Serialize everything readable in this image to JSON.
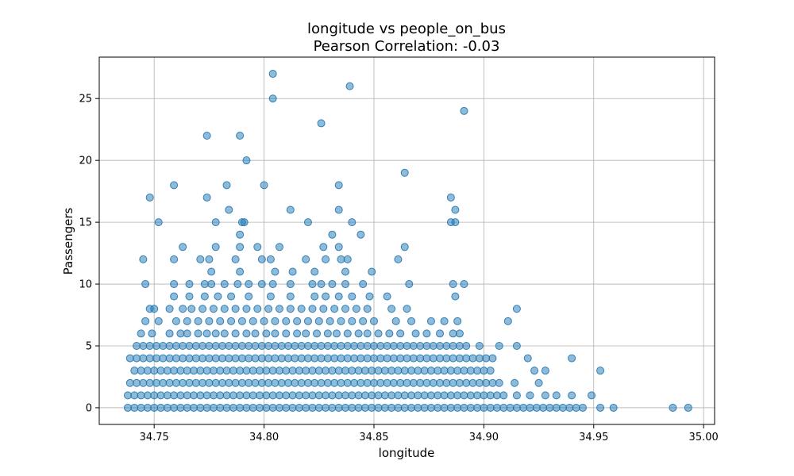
{
  "chart_data": {
    "type": "scatter",
    "title": "longitude vs people_on_bus",
    "subtitle": "Pearson Correlation: -0.03",
    "xlabel": "longitude",
    "ylabel": "Passengers",
    "xlim": [
      34.725,
      35.005
    ],
    "ylim": [
      -1.35,
      28.35
    ],
    "xticks": [
      34.75,
      34.8,
      34.85,
      34.9,
      34.95,
      35.0
    ],
    "xtick_labels": [
      "34.75",
      "34.80",
      "34.85",
      "34.90",
      "34.95",
      "35.00"
    ],
    "yticks": [
      0,
      5,
      10,
      15,
      20,
      25
    ],
    "ytick_labels": [
      "0",
      "5",
      "10",
      "15",
      "20",
      "25"
    ],
    "grid": true,
    "marker_color": "#1f77b4",
    "marker_alpha": 0.5,
    "series": [
      {
        "x": [
          34.738,
          34.741,
          34.744,
          34.747,
          34.75,
          34.753,
          34.756,
          34.759,
          34.762,
          34.765,
          34.768,
          34.771,
          34.774,
          34.777,
          34.78,
          34.783,
          34.786,
          34.789,
          34.792,
          34.795,
          34.798,
          34.801,
          34.804,
          34.807,
          34.81,
          34.813,
          34.816,
          34.819,
          34.822,
          34.825,
          34.828,
          34.831,
          34.834,
          34.837,
          34.84,
          34.843,
          34.846,
          34.849,
          34.852,
          34.855,
          34.858,
          34.861,
          34.864,
          34.867,
          34.87,
          34.873,
          34.876,
          34.879,
          34.882,
          34.885,
          34.888,
          34.891,
          34.894,
          34.897,
          34.9,
          34.903,
          34.906,
          34.909,
          34.912,
          34.915,
          34.918,
          34.921,
          34.924,
          34.927,
          34.93,
          34.933,
          34.936,
          34.939,
          34.942,
          34.945,
          34.953,
          34.959,
          34.986,
          34.993,
          34.738,
          34.741,
          34.744,
          34.747,
          34.75,
          34.753,
          34.756,
          34.759,
          34.762,
          34.765,
          34.768,
          34.771,
          34.774,
          34.777,
          34.78,
          34.783,
          34.786,
          34.789,
          34.792,
          34.795,
          34.798,
          34.801,
          34.804,
          34.807,
          34.81,
          34.813,
          34.816,
          34.819,
          34.822,
          34.825,
          34.828,
          34.831,
          34.834,
          34.837,
          34.84,
          34.843,
          34.846,
          34.849,
          34.852,
          34.855,
          34.858,
          34.861,
          34.864,
          34.867,
          34.87,
          34.873,
          34.876,
          34.879,
          34.882,
          34.885,
          34.888,
          34.891,
          34.894,
          34.897,
          34.9,
          34.903,
          34.906,
          34.909,
          34.915,
          34.921,
          34.928,
          34.933,
          34.94,
          34.949,
          34.739,
          34.742,
          34.745,
          34.748,
          34.751,
          34.754,
          34.757,
          34.76,
          34.763,
          34.766,
          34.769,
          34.772,
          34.775,
          34.778,
          34.781,
          34.784,
          34.787,
          34.79,
          34.793,
          34.796,
          34.799,
          34.802,
          34.805,
          34.808,
          34.811,
          34.814,
          34.817,
          34.82,
          34.823,
          34.826,
          34.829,
          34.832,
          34.835,
          34.838,
          34.841,
          34.844,
          34.847,
          34.85,
          34.853,
          34.856,
          34.859,
          34.862,
          34.865,
          34.868,
          34.871,
          34.874,
          34.877,
          34.88,
          34.883,
          34.886,
          34.889,
          34.892,
          34.895,
          34.898,
          34.901,
          34.904,
          34.907,
          34.914,
          34.925,
          34.741,
          34.744,
          34.747,
          34.75,
          34.753,
          34.756,
          34.759,
          34.762,
          34.765,
          34.768,
          34.771,
          34.774,
          34.777,
          34.78,
          34.783,
          34.786,
          34.789,
          34.792,
          34.795,
          34.798,
          34.801,
          34.804,
          34.807,
          34.81,
          34.813,
          34.816,
          34.819,
          34.822,
          34.825,
          34.828,
          34.831,
          34.834,
          34.837,
          34.84,
          34.843,
          34.846,
          34.849,
          34.852,
          34.855,
          34.858,
          34.861,
          34.864,
          34.867,
          34.87,
          34.873,
          34.876,
          34.879,
          34.882,
          34.885,
          34.888,
          34.891,
          34.894,
          34.897,
          34.9,
          34.903,
          34.923,
          34.928,
          34.953,
          34.739,
          34.742,
          34.745,
          34.748,
          34.751,
          34.754,
          34.757,
          34.76,
          34.763,
          34.766,
          34.769,
          34.772,
          34.775,
          34.778,
          34.781,
          34.784,
          34.787,
          34.79,
          34.793,
          34.796,
          34.799,
          34.802,
          34.805,
          34.808,
          34.811,
          34.814,
          34.817,
          34.82,
          34.823,
          34.826,
          34.829,
          34.832,
          34.835,
          34.838,
          34.841,
          34.844,
          34.847,
          34.85,
          34.853,
          34.856,
          34.859,
          34.862,
          34.865,
          34.868,
          34.871,
          34.874,
          34.877,
          34.88,
          34.883,
          34.886,
          34.889,
          34.892,
          34.895,
          34.898,
          34.901,
          34.904,
          34.92,
          34.94,
          34.742,
          34.745,
          34.748,
          34.751,
          34.754,
          34.757,
          34.76,
          34.763,
          34.766,
          34.769,
          34.772,
          34.775,
          34.778,
          34.781,
          34.784,
          34.787,
          34.79,
          34.793,
          34.796,
          34.799,
          34.802,
          34.805,
          34.808,
          34.811,
          34.814,
          34.817,
          34.82,
          34.823,
          34.826,
          34.829,
          34.832,
          34.835,
          34.838,
          34.841,
          34.844,
          34.847,
          34.85,
          34.853,
          34.856,
          34.859,
          34.862,
          34.865,
          34.868,
          34.871,
          34.874,
          34.877,
          34.88,
          34.883,
          34.886,
          34.889,
          34.892,
          34.898,
          34.907,
          34.915,
          34.744,
          34.749,
          34.757,
          34.762,
          34.765,
          34.77,
          34.774,
          34.778,
          34.782,
          34.787,
          34.792,
          34.796,
          34.801,
          34.805,
          34.81,
          34.815,
          34.819,
          34.824,
          34.829,
          34.833,
          34.838,
          34.843,
          34.847,
          34.852,
          34.857,
          34.862,
          34.869,
          34.874,
          34.88,
          34.886,
          34.889,
          34.746,
          34.752,
          34.76,
          34.765,
          34.77,
          34.775,
          34.78,
          34.785,
          34.79,
          34.795,
          34.8,
          34.805,
          34.81,
          34.815,
          34.82,
          34.825,
          34.83,
          34.835,
          34.84,
          34.845,
          34.85,
          34.86,
          34.867,
          34.876,
          34.882,
          34.888,
          34.911,
          34.748,
          34.75,
          34.757,
          34.763,
          34.767,
          34.772,
          34.777,
          34.782,
          34.787,
          34.792,
          34.797,
          34.802,
          34.807,
          34.812,
          34.817,
          34.822,
          34.827,
          34.832,
          34.837,
          34.842,
          34.847,
          34.858,
          34.865,
          34.915,
          34.759,
          34.766,
          34.773,
          34.779,
          34.785,
          34.793,
          34.803,
          34.812,
          34.823,
          34.828,
          34.834,
          34.84,
          34.848,
          34.856,
          34.887,
          34.746,
          34.759,
          34.766,
          34.773,
          34.776,
          34.782,
          34.788,
          34.793,
          34.799,
          34.804,
          34.812,
          34.822,
          34.826,
          34.831,
          34.837,
          34.845,
          34.866,
          34.886,
          34.891,
          34.776,
          34.789,
          34.805,
          34.813,
          34.823,
          34.837,
          34.849,
          34.745,
          34.759,
          34.771,
          34.775,
          34.787,
          34.799,
          34.803,
          34.819,
          34.828,
          34.835,
          34.838,
          34.861,
          34.763,
          34.778,
          34.789,
          34.797,
          34.807,
          34.827,
          34.834,
          34.864,
          34.789,
          34.831,
          34.844,
          34.79,
          34.82,
          34.885,
          34.752,
          34.778,
          34.791,
          34.84,
          34.887,
          34.784,
          34.812,
          34.834,
          34.887,
          34.748,
          34.774,
          34.885,
          34.759,
          34.783,
          34.8,
          34.834,
          34.864,
          34.792,
          34.774,
          34.789,
          34.826,
          34.891,
          34.804,
          34.839,
          34.804
        ],
        "y": [
          0,
          0,
          0,
          0,
          0,
          0,
          0,
          0,
          0,
          0,
          0,
          0,
          0,
          0,
          0,
          0,
          0,
          0,
          0,
          0,
          0,
          0,
          0,
          0,
          0,
          0,
          0,
          0,
          0,
          0,
          0,
          0,
          0,
          0,
          0,
          0,
          0,
          0,
          0,
          0,
          0,
          0,
          0,
          0,
          0,
          0,
          0,
          0,
          0,
          0,
          0,
          0,
          0,
          0,
          0,
          0,
          0,
          0,
          0,
          0,
          0,
          0,
          0,
          0,
          0,
          0,
          0,
          0,
          0,
          0,
          0,
          0,
          0,
          0,
          1,
          1,
          1,
          1,
          1,
          1,
          1,
          1,
          1,
          1,
          1,
          1,
          1,
          1,
          1,
          1,
          1,
          1,
          1,
          1,
          1,
          1,
          1,
          1,
          1,
          1,
          1,
          1,
          1,
          1,
          1,
          1,
          1,
          1,
          1,
          1,
          1,
          1,
          1,
          1,
          1,
          1,
          1,
          1,
          1,
          1,
          1,
          1,
          1,
          1,
          1,
          1,
          1,
          1,
          1,
          1,
          1,
          1,
          1,
          1,
          1,
          1,
          1,
          1,
          2,
          2,
          2,
          2,
          2,
          2,
          2,
          2,
          2,
          2,
          2,
          2,
          2,
          2,
          2,
          2,
          2,
          2,
          2,
          2,
          2,
          2,
          2,
          2,
          2,
          2,
          2,
          2,
          2,
          2,
          2,
          2,
          2,
          2,
          2,
          2,
          2,
          2,
          2,
          2,
          2,
          2,
          2,
          2,
          2,
          2,
          2,
          2,
          2,
          2,
          2,
          2,
          2,
          2,
          2,
          2,
          2,
          2,
          2,
          3,
          3,
          3,
          3,
          3,
          3,
          3,
          3,
          3,
          3,
          3,
          3,
          3,
          3,
          3,
          3,
          3,
          3,
          3,
          3,
          3,
          3,
          3,
          3,
          3,
          3,
          3,
          3,
          3,
          3,
          3,
          3,
          3,
          3,
          3,
          3,
          3,
          3,
          3,
          3,
          3,
          3,
          3,
          3,
          3,
          3,
          3,
          3,
          3,
          3,
          3,
          3,
          3,
          3,
          3,
          3,
          3,
          3,
          4,
          4,
          4,
          4,
          4,
          4,
          4,
          4,
          4,
          4,
          4,
          4,
          4,
          4,
          4,
          4,
          4,
          4,
          4,
          4,
          4,
          4,
          4,
          4,
          4,
          4,
          4,
          4,
          4,
          4,
          4,
          4,
          4,
          4,
          4,
          4,
          4,
          4,
          4,
          4,
          4,
          4,
          4,
          4,
          4,
          4,
          4,
          4,
          4,
          4,
          4,
          4,
          4,
          4,
          4,
          4,
          4,
          4,
          5,
          5,
          5,
          5,
          5,
          5,
          5,
          5,
          5,
          5,
          5,
          5,
          5,
          5,
          5,
          5,
          5,
          5,
          5,
          5,
          5,
          5,
          5,
          5,
          5,
          5,
          5,
          5,
          5,
          5,
          5,
          5,
          5,
          5,
          5,
          5,
          5,
          5,
          5,
          5,
          5,
          5,
          5,
          5,
          5,
          5,
          5,
          5,
          5,
          5,
          5,
          5,
          5,
          5,
          6,
          6,
          6,
          6,
          6,
          6,
          6,
          6,
          6,
          6,
          6,
          6,
          6,
          6,
          6,
          6,
          6,
          6,
          6,
          6,
          6,
          6,
          6,
          6,
          6,
          6,
          6,
          6,
          6,
          6,
          6,
          7,
          7,
          7,
          7,
          7,
          7,
          7,
          7,
          7,
          7,
          7,
          7,
          7,
          7,
          7,
          7,
          7,
          7,
          7,
          7,
          7,
          7,
          7,
          7,
          7,
          7,
          7,
          8,
          8,
          8,
          8,
          8,
          8,
          8,
          8,
          8,
          8,
          8,
          8,
          8,
          8,
          8,
          8,
          8,
          8,
          8,
          8,
          8,
          8,
          8,
          8,
          9,
          9,
          9,
          9,
          9,
          9,
          9,
          9,
          9,
          9,
          9,
          9,
          9,
          9,
          9,
          10,
          10,
          10,
          10,
          10,
          10,
          10,
          10,
          10,
          10,
          10,
          10,
          10,
          10,
          10,
          10,
          10,
          10,
          10,
          11,
          11,
          11,
          11,
          11,
          11,
          11,
          12,
          12,
          12,
          12,
          12,
          12,
          12,
          12,
          12,
          12,
          12,
          12,
          13,
          13,
          13,
          13,
          13,
          13,
          13,
          13,
          14,
          14,
          14,
          15,
          15,
          15,
          15,
          15,
          15,
          15,
          15,
          16,
          16,
          16,
          16,
          17,
          17,
          17,
          18,
          18,
          18,
          18,
          19,
          20,
          22,
          22,
          23,
          24,
          25,
          26,
          27
        ]
      }
    ]
  }
}
